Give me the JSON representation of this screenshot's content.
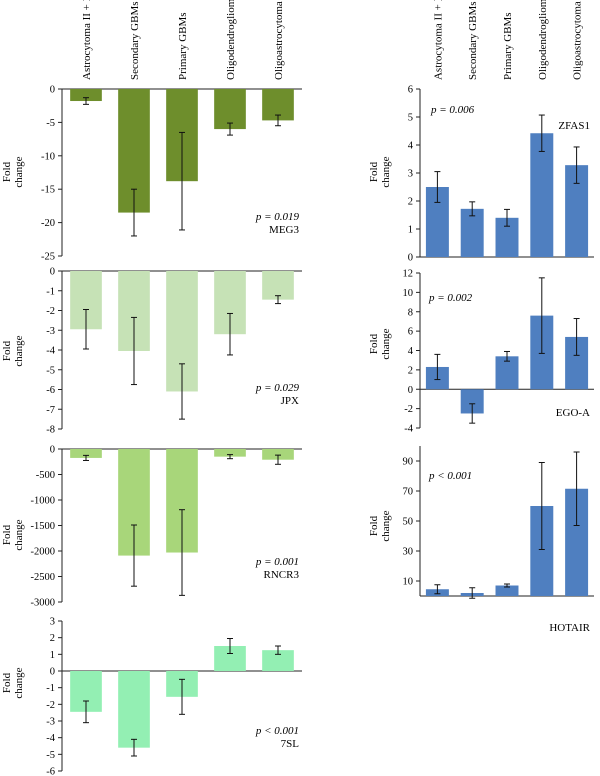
{
  "categories": [
    "Astrocytoma II + III",
    "Secondary GBMs",
    "Primary GBMs",
    "Oligodendroglioma",
    "Oligoastrocytoma"
  ],
  "ylabel_line1": "Fold",
  "ylabel_line2": "change",
  "chart_data": [
    {
      "id": "meg3",
      "type": "bar",
      "categories": [
        "Astrocytoma II + III",
        "Secondary GBMs",
        "Primary GBMs",
        "Oligodendroglioma",
        "Oligoastrocytoma"
      ],
      "values": [
        -1.8,
        -18.5,
        -13.8,
        -6.0,
        -4.7
      ],
      "errors": [
        0.5,
        3.5,
        7.3,
        0.9,
        0.8
      ],
      "ylim": [
        -25,
        0
      ],
      "yticks": [
        0,
        -5,
        -10,
        -15,
        -20,
        -25
      ],
      "ytick_labels": [
        "0",
        "-5",
        "-10",
        "-15",
        "-20",
        "-25"
      ],
      "ylabel": "Fold change",
      "pvalue": "p = 0.019",
      "gene": "MEG3",
      "color": "#6e8e2c",
      "legend_position": "bottom-right"
    },
    {
      "id": "jpx",
      "type": "bar",
      "categories": [
        "Astrocytoma II + III",
        "Secondary GBMs",
        "Primary GBMs",
        "Oligodendroglioma",
        "Oligoastrocytoma"
      ],
      "values": [
        -2.95,
        -4.05,
        -6.1,
        -3.2,
        -1.45
      ],
      "errors": [
        1.0,
        1.7,
        1.4,
        1.05,
        0.2
      ],
      "ylim": [
        -8,
        0
      ],
      "yticks": [
        0,
        -1,
        -2,
        -3,
        -4,
        -5,
        -6,
        -7,
        -8
      ],
      "ytick_labels": [
        "0",
        "-1",
        "-2",
        "-3",
        "-4",
        "-5",
        "-6",
        "-7",
        "-8"
      ],
      "ylabel": "Fold change",
      "pvalue": "p = 0.029",
      "gene": "JPX",
      "color": "#c6e2b6",
      "legend_position": "bottom-right"
    },
    {
      "id": "rncr3",
      "type": "bar",
      "categories": [
        "Astrocytoma II + III",
        "Secondary GBMs",
        "Primary GBMs",
        "Oligodendroglioma",
        "Oligoastrocytoma"
      ],
      "values": [
        -175,
        -2090,
        -2030,
        -150,
        -210
      ],
      "errors": [
        50,
        600,
        840,
        40,
        90
      ],
      "ylim": [
        -3000,
        0
      ],
      "yticks": [
        0,
        -500,
        -1000,
        -1500,
        -2000,
        -2500,
        -3000
      ],
      "ytick_labels": [
        "0",
        "-500",
        "-1000",
        "-1500",
        "-2000",
        "-2500",
        "-3000"
      ],
      "ylabel": "Fold change",
      "pvalue": "p = 0.001",
      "gene": "RNCR3",
      "color": "#a8d67a",
      "legend_position": "bottom-right"
    },
    {
      "id": "7sl",
      "type": "bar",
      "categories": [
        "Astrocytoma II + III",
        "Secondary GBMs",
        "Primary GBMs",
        "Oligodendroglioma",
        "Oligoastrocytoma"
      ],
      "values": [
        -2.45,
        -4.6,
        -1.55,
        1.5,
        1.25
      ],
      "errors": [
        0.65,
        0.5,
        1.05,
        0.45,
        0.25
      ],
      "ylim": [
        -6,
        3
      ],
      "yticks": [
        3,
        2,
        1,
        0,
        -1,
        -2,
        -3,
        -4,
        -5,
        -6
      ],
      "ytick_labels": [
        "3",
        "2",
        "1",
        "0",
        "-1",
        "-2",
        "-3",
        "-4",
        "-5",
        "-6"
      ],
      "ylabel": "Fold change",
      "pvalue": "p < 0.001",
      "gene": "7SL",
      "color": "#93efb3",
      "legend_position": "bottom-right"
    },
    {
      "id": "zfas1",
      "type": "bar",
      "categories": [
        "Astrocytoma II + III",
        "Secondary GBMs",
        "Primary GBMs",
        "Oligodendroglioma",
        "Oligoastrocytoma"
      ],
      "values": [
        2.5,
        1.72,
        1.4,
        4.42,
        3.28
      ],
      "errors": [
        0.55,
        0.25,
        0.3,
        0.65,
        0.65
      ],
      "ylim": [
        0,
        6
      ],
      "yticks": [
        0,
        1,
        2,
        3,
        4,
        5,
        6
      ],
      "ytick_labels": [
        "0",
        "1",
        "2",
        "3",
        "4",
        "5",
        "6"
      ],
      "ylabel": "Fold change",
      "pvalue": "p = 0.006",
      "gene": "ZFAS1",
      "color": "#4f7fc0",
      "legend_position": "top-left / top-right"
    },
    {
      "id": "egoa",
      "type": "bar",
      "categories": [
        "Astrocytoma II + III",
        "Secondary GBMs",
        "Primary GBMs",
        "Oligodendroglioma",
        "Oligoastrocytoma"
      ],
      "values": [
        2.3,
        -2.5,
        3.4,
        7.6,
        5.4
      ],
      "errors": [
        1.3,
        1.0,
        0.5,
        3.9,
        1.9
      ],
      "ylim": [
        -4,
        12
      ],
      "yticks": [
        12,
        10,
        8,
        6,
        4,
        2,
        0,
        -2,
        -4
      ],
      "ytick_labels": [
        "12",
        "10",
        "8",
        "6",
        "4",
        "2",
        "0",
        "-2",
        "-4"
      ],
      "ylabel": "Fold change",
      "pvalue": "p = 0.002",
      "gene": "EGO-A",
      "color": "#4f7fc0",
      "legend_position": "top-left / bottom-right"
    },
    {
      "id": "hotair",
      "type": "bar",
      "categories": [
        "Astrocytoma II + III",
        "Secondary GBMs",
        "Primary GBMs",
        "Oligodendroglioma",
        "Oligoastrocytoma"
      ],
      "values": [
        4.5,
        2,
        7,
        60,
        71.5
      ],
      "errors": [
        3,
        3.5,
        1,
        29,
        24.5
      ],
      "ylim": [
        0,
        100
      ],
      "yticks": [
        10,
        30,
        50,
        70,
        90
      ],
      "ytick_labels": [
        "10",
        "30",
        "50",
        "70",
        "90"
      ],
      "ylabel": "Fold change",
      "pvalue": "p < 0.001",
      "gene": "HOTAIR",
      "color": "#4f7fc0",
      "legend_position": "top-left / below-right"
    }
  ]
}
